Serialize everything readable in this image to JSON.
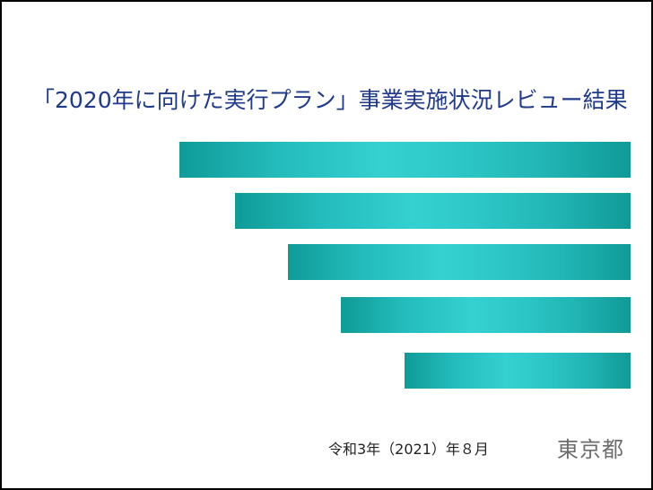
{
  "slide": {
    "title": "「2020年に向けた実行プラン」事業実施状況レビュー結果",
    "date": "令和3年（2021）年８月",
    "organization": "東京都",
    "colors": {
      "title": "#1f3a8a",
      "bar_edge": "#0f9b98",
      "bar_center": "#35d0d0",
      "organization": "#6d6d6d"
    }
  }
}
